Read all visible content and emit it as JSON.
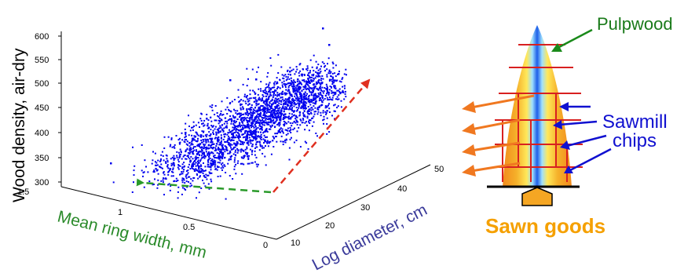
{
  "plot": {
    "z_label": "Wood density, air-dry",
    "x_label": "Mean ring width, mm",
    "y_label": "Log diameter, cm",
    "z_ticks": [
      "600",
      "550",
      "500",
      "450",
      "400",
      "350",
      "300"
    ],
    "x_ticks": [
      "1.5",
      "1",
      "0.5",
      "0"
    ],
    "y_ticks": [
      "10",
      "20",
      "30",
      "40",
      "50"
    ],
    "point_color": "#0000ee",
    "arrow_green": "#2a9a2a",
    "arrow_red": "#e03020"
  },
  "log": {
    "pulpwood_label": "Pulpwood",
    "sawmill_label": "Sawmill",
    "chips_label": "chips",
    "sawn_label": "Sawn goods",
    "colors": {
      "outer": "#f5a623",
      "mid": "#ffe44d",
      "core": "#1e6fe8",
      "cut_lines": "#d82020",
      "orange_arrows": "#f07820",
      "blue_arrows": "#1010d0",
      "green_arrow": "#1a8a1a"
    }
  }
}
